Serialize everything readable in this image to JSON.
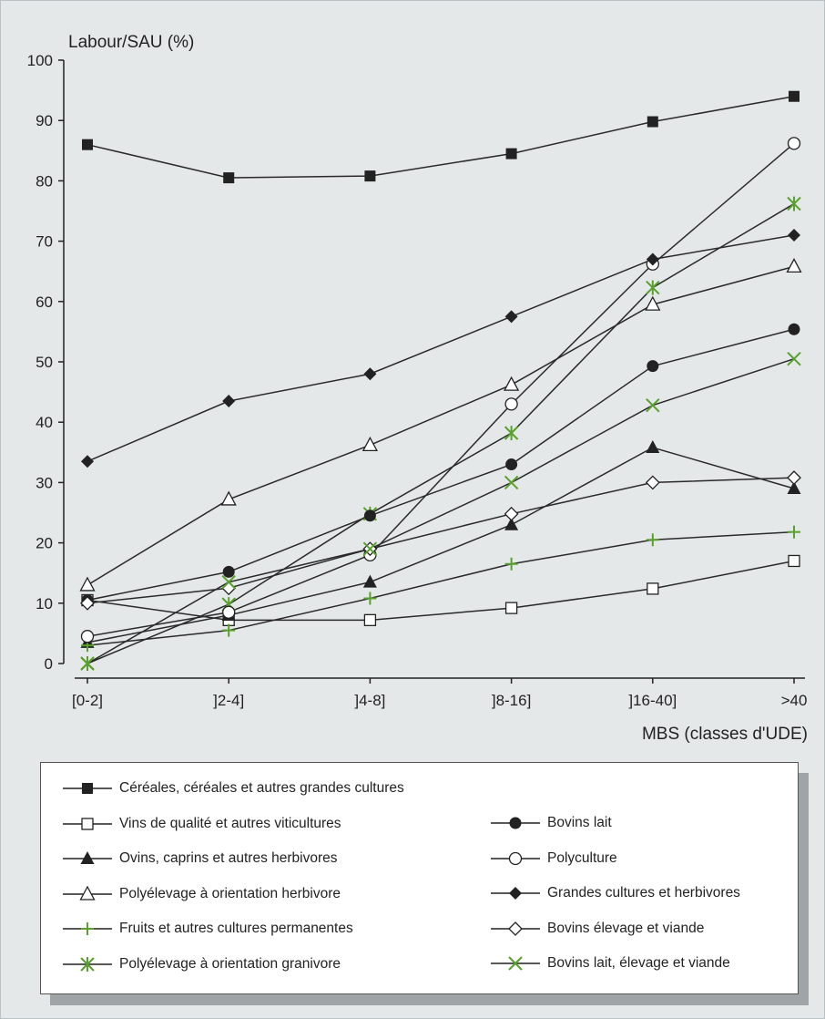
{
  "chart_data": {
    "type": "line",
    "ylabel": "Labour/SAU (%)",
    "xlabel": "MBS (classes d'UDE)",
    "categories": [
      "[0-2]",
      "]2-4]",
      "]4-8]",
      "]8-16]",
      "]16-40]",
      ">40"
    ],
    "ylim": [
      0,
      100
    ],
    "yticks": [
      0,
      10,
      20,
      30,
      40,
      50,
      60,
      70,
      80,
      90,
      100
    ],
    "grid": false,
    "legend_position": "bottom",
    "series": [
      {
        "name": "Céréales, céréales et autres grandes cultures",
        "marker": "square-filled",
        "color": "#222222",
        "values": [
          86,
          80.5,
          80.8,
          84.5,
          89.8,
          94
        ]
      },
      {
        "name": "Vins de qualité et autres viticultures",
        "marker": "square-open",
        "color": "#222222",
        "values": [
          10.5,
          7.2,
          7.2,
          9.2,
          12.4,
          17
        ]
      },
      {
        "name": "Ovins, caprins et autres herbivores",
        "marker": "triangle-filled",
        "color": "#222222",
        "values": [
          3.5,
          8,
          13.5,
          23,
          35.8,
          29
        ]
      },
      {
        "name": "Polyélevage à orientation herbivore",
        "marker": "triangle-open",
        "color": "#222222",
        "values": [
          13,
          27.2,
          36.2,
          46.2,
          59.5,
          65.8
        ]
      },
      {
        "name": "Fruits et autres cultures permanentes",
        "marker": "plus",
        "color": "#5aa02c",
        "values": [
          3,
          5.5,
          10.8,
          16.5,
          20.5,
          21.8
        ]
      },
      {
        "name": "Polyélevage à orientation granivore",
        "marker": "asterisk",
        "color": "#5aa02c",
        "values": [
          0,
          9.8,
          24.8,
          38.2,
          62.3,
          76.2
        ]
      },
      {
        "name": "Bovins lait",
        "marker": "circle-filled",
        "color": "#222222",
        "values": [
          10.5,
          15.2,
          24.5,
          33,
          49.3,
          55.4
        ]
      },
      {
        "name": "Polyculture",
        "marker": "circle-open",
        "color": "#222222",
        "values": [
          4.5,
          8.5,
          18,
          43,
          66.2,
          86.2
        ]
      },
      {
        "name": "Grandes cultures et herbivores",
        "marker": "diamond-filled",
        "color": "#222222",
        "values": [
          33.5,
          43.5,
          48,
          57.5,
          67,
          71
        ]
      },
      {
        "name": "Bovins élevage et viande",
        "marker": "diamond-open",
        "color": "#222222",
        "values": [
          10,
          12.5,
          19,
          24.8,
          30,
          30.8
        ]
      },
      {
        "name": "Bovins lait, élevage et viande",
        "marker": "x",
        "color": "#5aa02c",
        "values": [
          0,
          13.5,
          19,
          30,
          42.8,
          50.5
        ]
      }
    ]
  }
}
